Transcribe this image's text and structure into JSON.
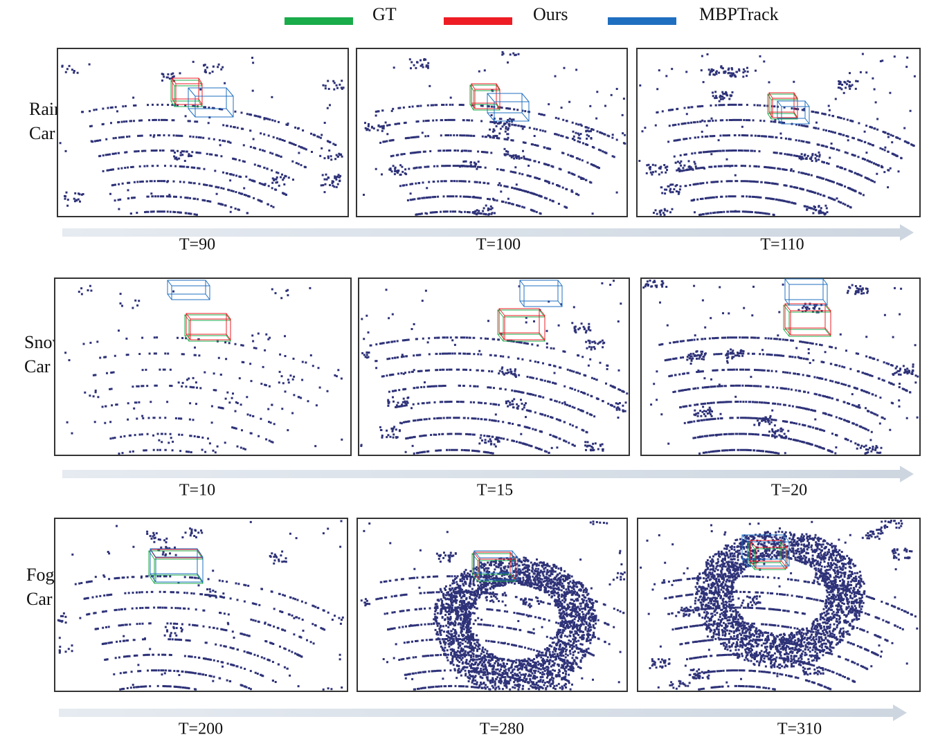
{
  "legend": {
    "items": [
      {
        "label": "GT",
        "color": "#1aab4a"
      },
      {
        "label": "Ours",
        "color": "#ee1c24"
      },
      {
        "label": "MBPTrack",
        "color": "#1f6fc0"
      }
    ]
  },
  "rows": [
    {
      "label_lines": [
        "Rain",
        "Car"
      ],
      "panels": [
        {
          "time": "T=90"
        },
        {
          "time": "T=100"
        },
        {
          "time": "T=110"
        }
      ]
    },
    {
      "label_lines": [
        "Snow",
        "Car"
      ],
      "panels": [
        {
          "time": "T=10"
        },
        {
          "time": "T=15"
        },
        {
          "time": "T=20"
        }
      ]
    },
    {
      "label_lines": [
        "Fog",
        "Car"
      ],
      "panels": [
        {
          "time": "T=200"
        },
        {
          "time": "T=280"
        },
        {
          "time": "T=310"
        }
      ]
    }
  ]
}
